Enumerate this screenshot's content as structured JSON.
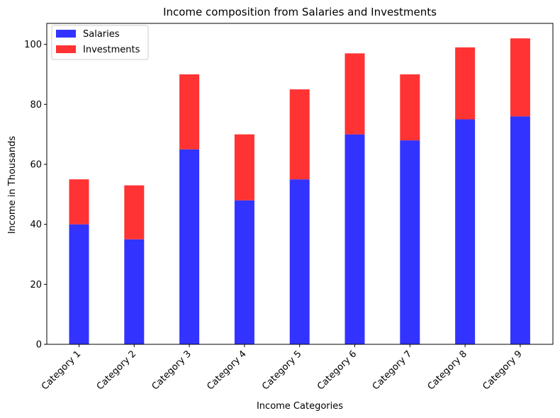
{
  "chart_data": {
    "type": "bar",
    "stacked": true,
    "title": "Income composition from Salaries and Investments",
    "xlabel": "Income Categories",
    "ylabel": "Income in Thousands",
    "categories": [
      "Category 1",
      "Category 2",
      "Category 3",
      "Category 4",
      "Category 5",
      "Category 6",
      "Category 7",
      "Category 8",
      "Category 9"
    ],
    "series": [
      {
        "name": "Salaries",
        "color": "#3333ff",
        "values": [
          40,
          35,
          65,
          48,
          55,
          70,
          68,
          75,
          76
        ]
      },
      {
        "name": "Investments",
        "color": "#ff3333",
        "values": [
          15,
          18,
          25,
          22,
          30,
          27,
          22,
          24,
          26
        ]
      }
    ],
    "ylim": [
      0,
      107
    ],
    "yticks": [
      0,
      20,
      40,
      60,
      80,
      100
    ],
    "legend": "top-left",
    "grid": false
  }
}
